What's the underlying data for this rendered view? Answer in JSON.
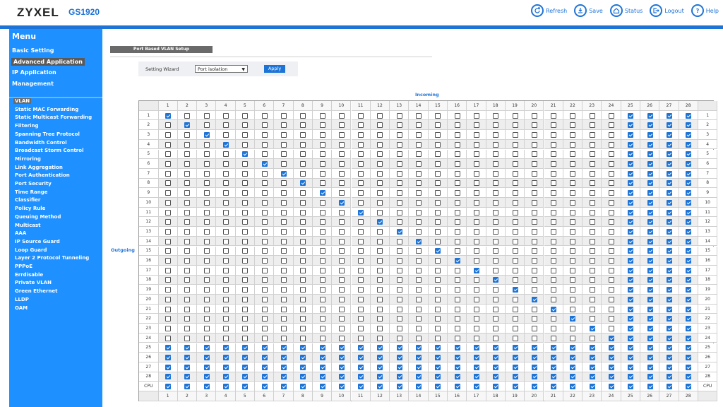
{
  "header": {
    "brand": "ZYXEL",
    "model": "GS1920",
    "toolbar": [
      {
        "label": "Refresh",
        "icon": "refresh-icon"
      },
      {
        "label": "Save",
        "icon": "save-icon"
      },
      {
        "label": "Status",
        "icon": "status-icon"
      },
      {
        "label": "Logout",
        "icon": "logout-icon"
      },
      {
        "label": "Help",
        "icon": "help-icon"
      }
    ]
  },
  "sidebar": {
    "title": "Menu",
    "sections": [
      "Basic Setting",
      "Advanced Application",
      "IP Application",
      "Management"
    ],
    "active_section": "Advanced Application",
    "items": [
      "VLAN",
      "Static MAC Forwarding",
      "Static Multicast Forwarding",
      "Filtering",
      "Spanning Tree Protocol",
      "Bandwidth Control",
      "Broadcast Storm Control",
      "Mirroring",
      "Link Aggregation",
      "Port Authentication",
      "Port Security",
      "Time Range",
      "Classifier",
      "Policy Rule",
      "Queuing Method",
      "Multicast",
      "AAA",
      "IP Source Guard",
      "Loop Guard",
      "Layer 2 Protocol Tunneling",
      "PPPoE",
      "Errdisable",
      "Private VLAN",
      "Green Ethernet",
      "LLDP",
      "OAM"
    ],
    "active_item": "VLAN"
  },
  "main": {
    "section_title": "Port Based VLAN Setup",
    "wizard_label": "Setting Wizard",
    "wizard_value": "Port isolation",
    "apply_label": "Apply",
    "incoming_label": "Incoming",
    "outgoing_label": "Outgoing",
    "columns": [
      "1",
      "2",
      "3",
      "4",
      "5",
      "6",
      "7",
      "8",
      "9",
      "10",
      "11",
      "12",
      "13",
      "14",
      "15",
      "16",
      "17",
      "18",
      "19",
      "20",
      "21",
      "22",
      "23",
      "24",
      "25",
      "26",
      "27",
      "28"
    ],
    "rows": [
      "1",
      "2",
      "3",
      "4",
      "5",
      "6",
      "7",
      "8",
      "9",
      "10",
      "11",
      "12",
      "13",
      "14",
      "15",
      "16",
      "17",
      "18",
      "19",
      "20",
      "21",
      "22",
      "23",
      "24",
      "25",
      "26",
      "27",
      "28",
      "CPU"
    ],
    "matrix_rule": "row r (1-24) checks own column and columns 25-28; rows 25-28 and CPU check all columns"
  },
  "colors": {
    "accent": "#1e74d6",
    "sidebar": "#1e90ff",
    "section_bg": "#6a6a6a"
  }
}
